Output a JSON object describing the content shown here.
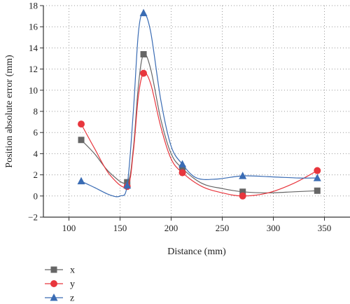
{
  "chart_data": {
    "type": "line",
    "xlabel": "Distance (mm)",
    "ylabel": "Position absolute error (mm)",
    "xlim": [
      75,
      375
    ],
    "ylim": [
      -2,
      18
    ],
    "xticks": [
      100,
      150,
      200,
      250,
      300,
      350
    ],
    "yticks": [
      -2,
      0,
      2,
      4,
      6,
      8,
      10,
      12,
      14,
      16,
      18
    ],
    "grid": true,
    "legend": "bottom-left",
    "series": [
      {
        "name": "x",
        "color": "#666666",
        "marker": "square",
        "x": [
          112,
          157,
          173,
          211,
          270,
          343
        ],
        "y": [
          5.3,
          1.3,
          13.4,
          2.6,
          0.4,
          0.5
        ],
        "curve_y": [
          [
            112,
            5.3
          ],
          [
            125,
            4.0
          ],
          [
            140,
            2.2
          ],
          [
            157,
            1.3
          ],
          [
            163,
            4.5
          ],
          [
            168,
            10.5
          ],
          [
            173,
            13.4
          ],
          [
            180,
            12.0
          ],
          [
            190,
            7.2
          ],
          [
            200,
            4.0
          ],
          [
            211,
            2.6
          ],
          [
            230,
            1.2
          ],
          [
            250,
            0.7
          ],
          [
            270,
            0.4
          ],
          [
            295,
            0.3
          ],
          [
            320,
            0.4
          ],
          [
            343,
            0.5
          ]
        ]
      },
      {
        "name": "y",
        "color": "#e8363d",
        "marker": "circle",
        "x": [
          112,
          157,
          173,
          211,
          270,
          343
        ],
        "y": [
          6.8,
          0.9,
          11.6,
          2.2,
          0.0,
          2.4
        ],
        "curve_y": [
          [
            112,
            6.8
          ],
          [
            125,
            4.5
          ],
          [
            140,
            2.0
          ],
          [
            157,
            0.9
          ],
          [
            163,
            4.2
          ],
          [
            168,
            9.5
          ],
          [
            173,
            11.6
          ],
          [
            180,
            10.6
          ],
          [
            190,
            6.5
          ],
          [
            200,
            3.5
          ],
          [
            211,
            2.2
          ],
          [
            230,
            0.9
          ],
          [
            250,
            0.3
          ],
          [
            270,
            0.0
          ],
          [
            295,
            0.3
          ],
          [
            320,
            1.2
          ],
          [
            343,
            2.4
          ]
        ]
      },
      {
        "name": "z",
        "color": "#3a6cb4",
        "marker": "triangle",
        "x": [
          112,
          157,
          173,
          211,
          270,
          343
        ],
        "y": [
          1.4,
          1.0,
          17.3,
          3.0,
          1.9,
          1.7
        ],
        "curve_y": [
          [
            112,
            1.4
          ],
          [
            125,
            0.8
          ],
          [
            140,
            0.1
          ],
          [
            150,
            0.0
          ],
          [
            157,
            1.0
          ],
          [
            163,
            8.0
          ],
          [
            168,
            15.5
          ],
          [
            173,
            17.3
          ],
          [
            180,
            15.5
          ],
          [
            190,
            9.0
          ],
          [
            200,
            4.7
          ],
          [
            211,
            3.0
          ],
          [
            225,
            1.7
          ],
          [
            245,
            1.6
          ],
          [
            270,
            1.9
          ],
          [
            300,
            1.8
          ],
          [
            325,
            1.7
          ],
          [
            343,
            1.7
          ]
        ]
      }
    ]
  }
}
